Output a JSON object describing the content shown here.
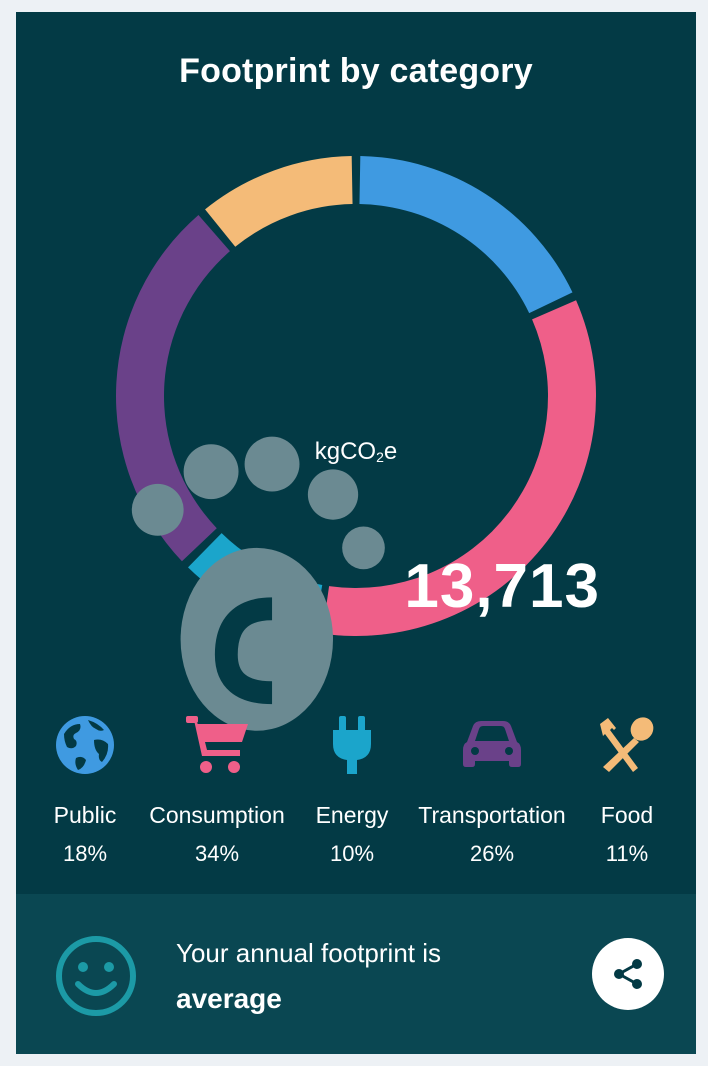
{
  "title": "Footprint by category",
  "total": {
    "value": "13,713",
    "unit_main": "kgCO",
    "unit_sub": "2",
    "unit_tail": "e",
    "icon": "footprint-icon"
  },
  "chart_data": {
    "type": "pie",
    "title": "Footprint by category",
    "slices": [
      {
        "label": "Public",
        "value": 18,
        "color": "#3f9ae1"
      },
      {
        "label": "Consumption",
        "value": 34,
        "color": "#ef5f89"
      },
      {
        "label": "Energy",
        "value": 10,
        "color": "#1ba5cb"
      },
      {
        "label": "Transportation",
        "value": 26,
        "color": "#6a4189"
      },
      {
        "label": "Food",
        "value": 11,
        "color": "#f4bb78"
      }
    ]
  },
  "categories": [
    {
      "name": "Public",
      "percent": "18%",
      "icon": "globe-icon",
      "color": "#3f9ae1"
    },
    {
      "name": "Consumption",
      "percent": "34%",
      "icon": "cart-icon",
      "color": "#ef5f89"
    },
    {
      "name": "Energy",
      "percent": "10%",
      "icon": "plug-icon",
      "color": "#1ba5cb"
    },
    {
      "name": "Transportation",
      "percent": "26%",
      "icon": "car-icon",
      "color": "#6a4189"
    },
    {
      "name": "Food",
      "percent": "11%",
      "icon": "fork-spoon-icon",
      "color": "#f4bb78"
    }
  ],
  "summary": {
    "prefix": "Your annual footprint is",
    "rating": "average",
    "icon": "smiley-icon",
    "share_icon": "share-icon"
  }
}
